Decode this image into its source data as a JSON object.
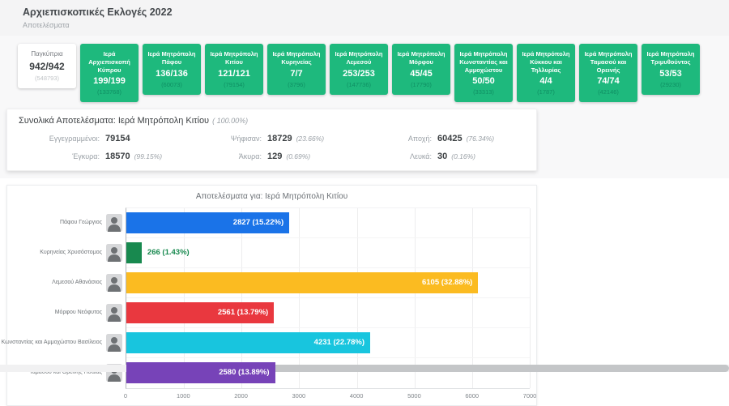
{
  "header": {
    "title": "Αρχιεπισκοπικές Εκλογές 2022",
    "subtitle": "Αποτελέσματα"
  },
  "districts": [
    {
      "name": "Παγκύπρια",
      "count": "942/942",
      "voters": "(548793)"
    },
    {
      "name": "Ιερά Αρχιεπισκοπή Κύπρου",
      "count": "199/199",
      "voters": "(133768)"
    },
    {
      "name": "Ιερά Μητρόπολη Πάφου",
      "count": "136/136",
      "voters": "(60073)"
    },
    {
      "name": "Ιερά Μητρόπολη Κιτίου",
      "count": "121/121",
      "voters": "(79154)"
    },
    {
      "name": "Ιερά Μητρόπολη Κυρηνείας",
      "count": "7/7",
      "voters": "(3796)"
    },
    {
      "name": "Ιερά Μητρόπολη Λεμεσού",
      "count": "253/253",
      "voters": "(147736)"
    },
    {
      "name": "Ιερά Μητρόπολη Μόρφου",
      "count": "45/45",
      "voters": "(17790)"
    },
    {
      "name": "Ιερά Μητρόπολη Κωνσταντίας και Αμμοχώστου",
      "count": "50/50",
      "voters": "(33313)"
    },
    {
      "name": "Ιερά Μητρόπολη Κύκκου και Τηλλυρίας",
      "count": "4/4",
      "voters": "(1787)"
    },
    {
      "name": "Ιερά Μητρόπολη Ταμασού και Ορεινής",
      "count": "74/74",
      "voters": "(42146)"
    },
    {
      "name": "Ιερά Μητρόπολη Τριμυθούντος",
      "count": "53/53",
      "voters": "(29230)"
    }
  ],
  "summary": {
    "title": "Συνολικά Αποτελέσματα: Ιερά Μητρόπολη Κιτίου",
    "title_pct": "( 100.00%)",
    "stats": [
      {
        "label": "Εγγεγραμμένοι:",
        "value": "79154",
        "pct": ""
      },
      {
        "label": "Ψήφισαν:",
        "value": "18729",
        "pct": "(23.66%)"
      },
      {
        "label": "Αποχή:",
        "value": "60425",
        "pct": "(76.34%)"
      },
      {
        "label": "Έγκυρα:",
        "value": "18570",
        "pct": "(99.15%)"
      },
      {
        "label": "Άκυρα:",
        "value": "129",
        "pct": "(0.69%)"
      },
      {
        "label": "Λευκά:",
        "value": "30",
        "pct": "(0.16%)"
      }
    ]
  },
  "chart_data": {
    "type": "bar",
    "orientation": "horizontal",
    "title": "Αποτελέσματα για: Ιερά Μητρόπολη Κιτίου",
    "categories": [
      "Πάφου Γεώργιος",
      "Κυρηνείας Χρυσόστομος",
      "Λεμεσού Αθανάσιος",
      "Μόρφου Νεόφυτος",
      "Κωνσταντίας και Αμμοχώστου Βασίλειος",
      "Ταμασού και Ορεινής Ησαΐας"
    ],
    "values": [
      2827,
      266,
      6105,
      2561,
      4231,
      2580
    ],
    "value_labels": [
      "2827 (15.22%)",
      "266 (1.43%)",
      "6105 (32.88%)",
      "2561 (13.79%)",
      "4231 (22.78%)",
      "2580 (13.89%)"
    ],
    "colors": [
      "#1a73e8",
      "#18894f",
      "#fbbb21",
      "#e9383f",
      "#18c5de",
      "#7743b8"
    ],
    "xlim": [
      0,
      7000
    ],
    "xticks": [
      "0",
      "1000",
      "2000",
      "3000",
      "4000",
      "5000",
      "6000",
      "7000"
    ],
    "grid": true,
    "legend": "none"
  },
  "colors": {
    "accent_green": "#1eb97d",
    "header_bg": "#f4f4f5"
  }
}
